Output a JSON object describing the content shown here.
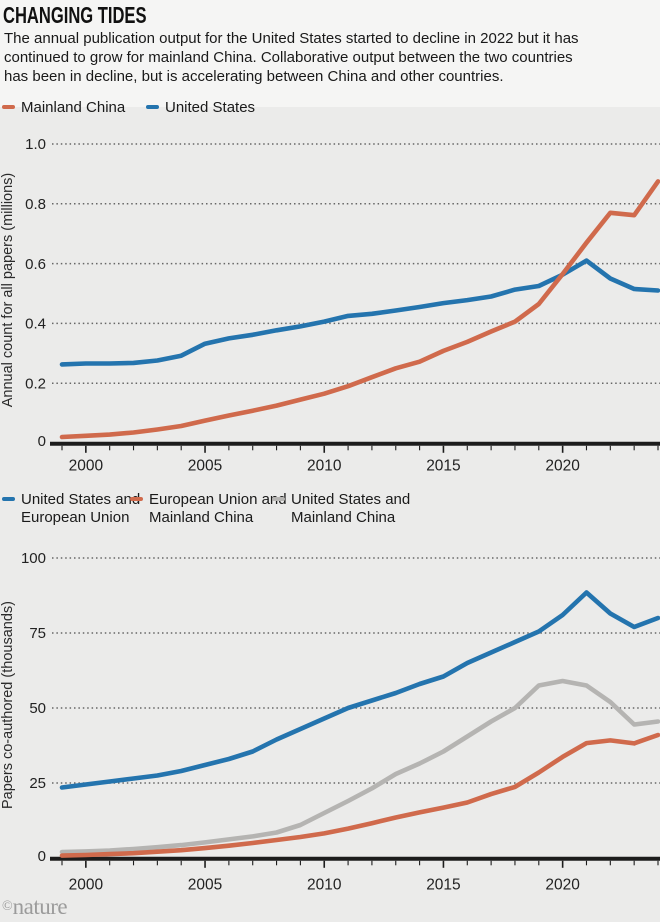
{
  "header": {
    "title": "CHANGING TIDES",
    "subtitle": "The annual publication output for the United States started to decline in 2022 but it has continued to grow for mainland China. Collaborative output between the two countries has been in decline, but is accelerating between China and other countries."
  },
  "colors": {
    "blue": "#2474ae",
    "orange": "#d06a4c",
    "gray": "#b5b4b2",
    "axis": "#1c1c1c",
    "grid": "#666666",
    "tick_text": "#222222",
    "axis_label_text": "#2b2b2b",
    "header_bg": "#f5f5f4",
    "panel_bg": "#ebebea"
  },
  "footer": {
    "copyright_symbol": "©",
    "logo_name": "nature"
  },
  "chart_data": [
    {
      "type": "line",
      "title": "",
      "ylabel": "Annual count for all papers (millions)",
      "xlabel": "",
      "grid": "dotted horizontal",
      "legend_position": "top-left",
      "ylim": [
        0,
        1.03
      ],
      "x": [
        1999,
        2000,
        2001,
        2002,
        2003,
        2004,
        2005,
        2006,
        2007,
        2008,
        2009,
        2010,
        2011,
        2012,
        2013,
        2014,
        2015,
        2016,
        2017,
        2018,
        2019,
        2020,
        2021,
        2022,
        2023,
        2024
      ],
      "xticks": [
        2000,
        2005,
        2010,
        2015,
        2020
      ],
      "yticks": [
        {
          "value": 0,
          "label": "0"
        },
        {
          "value": 0.2,
          "label": "0.2"
        },
        {
          "value": 0.4,
          "label": "0.4"
        },
        {
          "value": 0.6,
          "label": "0.6"
        },
        {
          "value": 0.8,
          "label": "0.8"
        },
        {
          "value": 1.0,
          "label": "1.0"
        }
      ],
      "series": [
        {
          "name": "Mainland China",
          "color": "#d06a4c",
          "values": [
            0.02,
            0.024,
            0.028,
            0.035,
            0.045,
            0.057,
            0.075,
            0.092,
            0.108,
            0.125,
            0.145,
            0.165,
            0.19,
            0.22,
            0.25,
            0.272,
            0.308,
            0.338,
            0.373,
            0.406,
            0.465,
            0.565,
            0.67,
            0.77,
            0.762,
            0.875
          ]
        },
        {
          "name": "United States",
          "color": "#2474ae",
          "values": [
            0.263,
            0.266,
            0.266,
            0.268,
            0.276,
            0.292,
            0.332,
            0.35,
            0.362,
            0.377,
            0.39,
            0.406,
            0.425,
            0.432,
            0.443,
            0.455,
            0.468,
            0.478,
            0.49,
            0.513,
            0.525,
            0.563,
            0.61,
            0.55,
            0.515,
            0.51
          ]
        }
      ],
      "legend": [
        {
          "lines": [
            "Mainland China"
          ],
          "color": "#d06a4c"
        },
        {
          "lines": [
            "United States"
          ],
          "color": "#2474ae"
        }
      ]
    },
    {
      "type": "line",
      "title": "",
      "ylabel": "Papers co-authored (thousands)",
      "xlabel": "",
      "grid": "dotted horizontal",
      "legend_position": "top-left",
      "ylim": [
        0,
        102
      ],
      "x": [
        1999,
        2000,
        2001,
        2002,
        2003,
        2004,
        2005,
        2006,
        2007,
        2008,
        2009,
        2010,
        2011,
        2012,
        2013,
        2014,
        2015,
        2016,
        2017,
        2018,
        2019,
        2020,
        2021,
        2022,
        2023,
        2024
      ],
      "xticks": [
        2000,
        2005,
        2010,
        2015,
        2020
      ],
      "yticks": [
        {
          "value": 0,
          "label": "0"
        },
        {
          "value": 25,
          "label": "25"
        },
        {
          "value": 50,
          "label": "50"
        },
        {
          "value": 75,
          "label": "75"
        },
        {
          "value": 100,
          "label": "100"
        }
      ],
      "series": [
        {
          "name": "United States and European Union",
          "color": "#2474ae",
          "values": [
            23.5,
            24.5,
            25.5,
            26.5,
            27.5,
            29,
            31,
            33,
            35.5,
            39.5,
            43,
            46.5,
            50,
            52.5,
            55,
            58,
            60.5,
            65,
            68.5,
            72,
            75.5,
            81,
            88.5,
            81.5,
            77,
            80
          ]
        },
        {
          "name": "European Union and Mainland China",
          "color": "#d06a4c",
          "values": [
            0.8,
            1,
            1.3,
            1.6,
            2.1,
            2.6,
            3.3,
            4.1,
            5,
            6,
            7,
            8.2,
            9.8,
            11.6,
            13.5,
            15.2,
            16.8,
            18.5,
            21.3,
            23.7,
            28.5,
            33.7,
            38.3,
            39.2,
            38.2,
            41
          ]
        },
        {
          "name": "United States and Mainland China",
          "color": "#b5b4b2",
          "values": [
            2,
            2.2,
            2.5,
            3,
            3.6,
            4.3,
            5.2,
            6.2,
            7.2,
            8.5,
            11,
            15,
            19,
            23.2,
            28,
            31.5,
            35.5,
            40.5,
            45.5,
            50,
            57.5,
            59,
            57.5,
            52,
            44.5,
            45.5
          ]
        }
      ],
      "legend": [
        {
          "lines": [
            "United States and",
            "European Union"
          ],
          "color": "#2474ae"
        },
        {
          "lines": [
            "European Union and",
            "Mainland China"
          ],
          "color": "#d06a4c"
        },
        {
          "lines": [
            "United States and",
            "Mainland China"
          ],
          "color": "#b5b4b2"
        }
      ]
    }
  ]
}
